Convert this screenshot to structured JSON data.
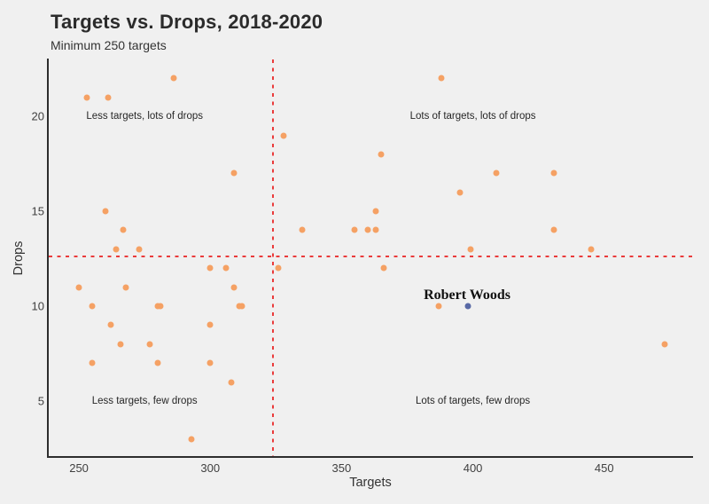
{
  "page": {
    "background": "#f0f0f0"
  },
  "chart_data": {
    "type": "scatter",
    "title": "Targets vs. Drops, 2018-2020",
    "subtitle": "Minimum 250 targets",
    "xlabel": "Targets",
    "ylabel": "Drops",
    "x_ticks": [
      250,
      300,
      350,
      400,
      450
    ],
    "y_ticks": [
      5,
      10,
      15,
      20
    ],
    "xlim": [
      238.5,
      483.5
    ],
    "ylim": [
      2.1,
      23
    ],
    "grid": false,
    "legend": "none",
    "reference_lines": {
      "vline_x": 324,
      "hline_y": 12.6,
      "style": "dashed",
      "color": "#ea3b3b"
    },
    "annotations": [
      {
        "text": "Less targets, lots of drops",
        "x": 275,
        "y": 20
      },
      {
        "text": "Lots of targets, lots of drops",
        "x": 400,
        "y": 20
      },
      {
        "text": "Less targets, few drops",
        "x": 275,
        "y": 5
      },
      {
        "text": "Lots of targets, few drops",
        "x": 400,
        "y": 5
      }
    ],
    "series": [
      {
        "name": "players",
        "color": "#f5a164",
        "points": [
          [
            286,
            22
          ],
          [
            388,
            22
          ],
          [
            253,
            21
          ],
          [
            261,
            21
          ],
          [
            328,
            19
          ],
          [
            365,
            18
          ],
          [
            309,
            17
          ],
          [
            409,
            17
          ],
          [
            431,
            17
          ],
          [
            395,
            16
          ],
          [
            260,
            15
          ],
          [
            363,
            15
          ],
          [
            267,
            14
          ],
          [
            335,
            14
          ],
          [
            355,
            14
          ],
          [
            360,
            14
          ],
          [
            363,
            14
          ],
          [
            431,
            14
          ],
          [
            264,
            13
          ],
          [
            273,
            13
          ],
          [
            399,
            13
          ],
          [
            445,
            13
          ],
          [
            300,
            12
          ],
          [
            306,
            12
          ],
          [
            326,
            12
          ],
          [
            366,
            12
          ],
          [
            250,
            11
          ],
          [
            268,
            11
          ],
          [
            309,
            11
          ],
          [
            255,
            10
          ],
          [
            280,
            10
          ],
          [
            281,
            10
          ],
          [
            311,
            10
          ],
          [
            312,
            10
          ],
          [
            387,
            10
          ],
          [
            262,
            9
          ],
          [
            300,
            9
          ],
          [
            266,
            8
          ],
          [
            277,
            8
          ],
          [
            473,
            8
          ],
          [
            255,
            7
          ],
          [
            280,
            7
          ],
          [
            300,
            7
          ],
          [
            308,
            6
          ],
          [
            293,
            3
          ]
        ]
      },
      {
        "name": "Robert Woods",
        "color": "#5869a5",
        "label": "Robert Woods",
        "label_at": [
          397.8,
          10.55
        ],
        "points": [
          [
            398,
            10
          ]
        ]
      }
    ]
  }
}
